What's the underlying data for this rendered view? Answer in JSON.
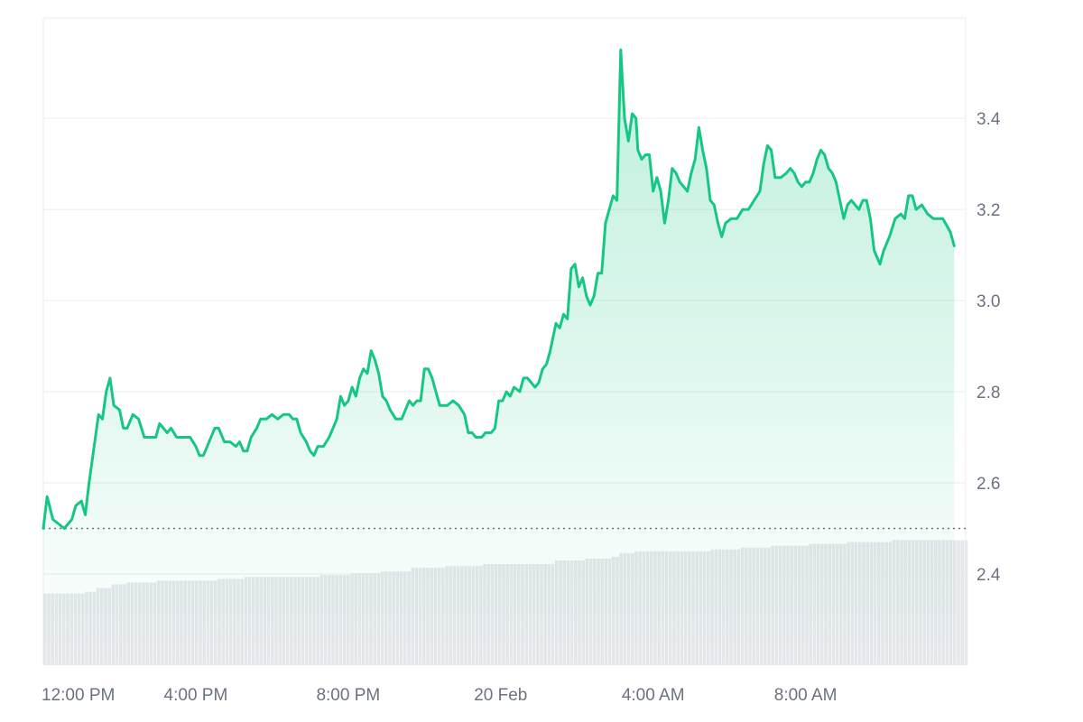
{
  "chart_data": {
    "type": "area",
    "title": "",
    "xlabel": "",
    "ylabel": "",
    "colors": {
      "line": "#16c784",
      "fill": "#16c784",
      "volume": "#e5e7eb",
      "grid": "#ececec",
      "baseline": "#6b7280"
    },
    "x_ticks": [
      {
        "label": "12:00 PM",
        "t": 0
      },
      {
        "label": "4:00 PM",
        "t": 4
      },
      {
        "label": "8:00 PM",
        "t": 8
      },
      {
        "label": "20 Feb",
        "t": 12
      },
      {
        "label": "4:00 AM",
        "t": 16
      },
      {
        "label": "8:00 AM",
        "t": 20
      }
    ],
    "y_ticks": [
      {
        "label": "3.4",
        "v": 3.4
      },
      {
        "label": "3.2",
        "v": 3.2
      },
      {
        "label": "3.0",
        "v": 3.0
      },
      {
        "label": "2.8",
        "v": 2.8
      },
      {
        "label": "2.6",
        "v": 2.6
      },
      {
        "label": "2.4",
        "v": 2.4
      }
    ],
    "baseline": 2.5,
    "ylim": [
      2.2,
      3.62
    ],
    "xlim": [
      0,
      24.2
    ],
    "grid": true,
    "price": [
      [
        0.0,
        2.5
      ],
      [
        0.1,
        2.57
      ],
      [
        0.25,
        2.52
      ],
      [
        0.4,
        2.51
      ],
      [
        0.55,
        2.5
      ],
      [
        0.75,
        2.52
      ],
      [
        0.85,
        2.55
      ],
      [
        1.0,
        2.56
      ],
      [
        1.1,
        2.53
      ],
      [
        1.2,
        2.6
      ],
      [
        1.45,
        2.75
      ],
      [
        1.55,
        2.74
      ],
      [
        1.65,
        2.8
      ],
      [
        1.75,
        2.83
      ],
      [
        1.85,
        2.77
      ],
      [
        2.0,
        2.76
      ],
      [
        2.1,
        2.72
      ],
      [
        2.2,
        2.72
      ],
      [
        2.35,
        2.75
      ],
      [
        2.5,
        2.74
      ],
      [
        2.65,
        2.7
      ],
      [
        2.8,
        2.7
      ],
      [
        2.95,
        2.7
      ],
      [
        3.05,
        2.73
      ],
      [
        3.15,
        2.72
      ],
      [
        3.25,
        2.71
      ],
      [
        3.35,
        2.72
      ],
      [
        3.5,
        2.7
      ],
      [
        3.65,
        2.7
      ],
      [
        3.85,
        2.7
      ],
      [
        4.0,
        2.68
      ],
      [
        4.1,
        2.66
      ],
      [
        4.2,
        2.66
      ],
      [
        4.35,
        2.69
      ],
      [
        4.5,
        2.72
      ],
      [
        4.6,
        2.72
      ],
      [
        4.75,
        2.69
      ],
      [
        4.9,
        2.69
      ],
      [
        5.05,
        2.68
      ],
      [
        5.15,
        2.69
      ],
      [
        5.25,
        2.67
      ],
      [
        5.35,
        2.67
      ],
      [
        5.45,
        2.7
      ],
      [
        5.6,
        2.72
      ],
      [
        5.7,
        2.74
      ],
      [
        5.85,
        2.74
      ],
      [
        6.0,
        2.75
      ],
      [
        6.15,
        2.74
      ],
      [
        6.3,
        2.75
      ],
      [
        6.45,
        2.75
      ],
      [
        6.55,
        2.74
      ],
      [
        6.65,
        2.74
      ],
      [
        6.75,
        2.71
      ],
      [
        6.9,
        2.69
      ],
      [
        7.0,
        2.67
      ],
      [
        7.1,
        2.66
      ],
      [
        7.2,
        2.68
      ],
      [
        7.35,
        2.68
      ],
      [
        7.5,
        2.7
      ],
      [
        7.6,
        2.72
      ],
      [
        7.7,
        2.74
      ],
      [
        7.8,
        2.79
      ],
      [
        7.9,
        2.77
      ],
      [
        8.0,
        2.78
      ],
      [
        8.1,
        2.81
      ],
      [
        8.2,
        2.79
      ],
      [
        8.3,
        2.83
      ],
      [
        8.4,
        2.85
      ],
      [
        8.5,
        2.84
      ],
      [
        8.6,
        2.89
      ],
      [
        8.7,
        2.87
      ],
      [
        8.8,
        2.84
      ],
      [
        8.9,
        2.79
      ],
      [
        9.0,
        2.78
      ],
      [
        9.1,
        2.76
      ],
      [
        9.25,
        2.74
      ],
      [
        9.4,
        2.74
      ],
      [
        9.5,
        2.76
      ],
      [
        9.6,
        2.78
      ],
      [
        9.7,
        2.77
      ],
      [
        9.8,
        2.78
      ],
      [
        9.9,
        2.78
      ],
      [
        10.0,
        2.85
      ],
      [
        10.1,
        2.85
      ],
      [
        10.2,
        2.83
      ],
      [
        10.3,
        2.8
      ],
      [
        10.4,
        2.77
      ],
      [
        10.6,
        2.77
      ],
      [
        10.75,
        2.78
      ],
      [
        10.9,
        2.77
      ],
      [
        11.05,
        2.75
      ],
      [
        11.15,
        2.71
      ],
      [
        11.25,
        2.71
      ],
      [
        11.35,
        2.7
      ],
      [
        11.5,
        2.7
      ],
      [
        11.6,
        2.71
      ],
      [
        11.75,
        2.71
      ],
      [
        11.85,
        2.72
      ],
      [
        11.95,
        2.78
      ],
      [
        12.05,
        2.78
      ],
      [
        12.15,
        2.8
      ],
      [
        12.25,
        2.79
      ],
      [
        12.35,
        2.81
      ],
      [
        12.5,
        2.8
      ],
      [
        12.6,
        2.83
      ],
      [
        12.7,
        2.83
      ],
      [
        12.8,
        2.82
      ],
      [
        12.9,
        2.81
      ],
      [
        13.0,
        2.82
      ],
      [
        13.1,
        2.85
      ],
      [
        13.2,
        2.86
      ],
      [
        13.3,
        2.89
      ],
      [
        13.45,
        2.95
      ],
      [
        13.55,
        2.94
      ],
      [
        13.65,
        2.97
      ],
      [
        13.75,
        2.96
      ],
      [
        13.85,
        3.07
      ],
      [
        13.95,
        3.08
      ],
      [
        14.05,
        3.03
      ],
      [
        14.15,
        3.05
      ],
      [
        14.25,
        3.01
      ],
      [
        14.35,
        2.99
      ],
      [
        14.45,
        3.01
      ],
      [
        14.55,
        3.06
      ],
      [
        14.65,
        3.06
      ],
      [
        14.75,
        3.17
      ],
      [
        14.85,
        3.2
      ],
      [
        14.95,
        3.23
      ],
      [
        15.05,
        3.22
      ],
      [
        15.15,
        3.55
      ],
      [
        15.25,
        3.4
      ],
      [
        15.35,
        3.35
      ],
      [
        15.45,
        3.41
      ],
      [
        15.55,
        3.4
      ],
      [
        15.6,
        3.33
      ],
      [
        15.7,
        3.31
      ],
      [
        15.8,
        3.32
      ],
      [
        15.9,
        3.32
      ],
      [
        16.0,
        3.24
      ],
      [
        16.1,
        3.27
      ],
      [
        16.2,
        3.24
      ],
      [
        16.3,
        3.17
      ],
      [
        16.4,
        3.22
      ],
      [
        16.5,
        3.29
      ],
      [
        16.6,
        3.28
      ],
      [
        16.7,
        3.26
      ],
      [
        16.8,
        3.25
      ],
      [
        16.9,
        3.24
      ],
      [
        17.0,
        3.28
      ],
      [
        17.1,
        3.31
      ],
      [
        17.2,
        3.38
      ],
      [
        17.3,
        3.33
      ],
      [
        17.4,
        3.29
      ],
      [
        17.5,
        3.22
      ],
      [
        17.6,
        3.21
      ],
      [
        17.7,
        3.17
      ],
      [
        17.8,
        3.14
      ],
      [
        17.9,
        3.17
      ],
      [
        18.05,
        3.18
      ],
      [
        18.2,
        3.18
      ],
      [
        18.35,
        3.2
      ],
      [
        18.5,
        3.2
      ],
      [
        18.65,
        3.22
      ],
      [
        18.8,
        3.24
      ],
      [
        18.9,
        3.3
      ],
      [
        19.0,
        3.34
      ],
      [
        19.1,
        3.33
      ],
      [
        19.2,
        3.27
      ],
      [
        19.35,
        3.27
      ],
      [
        19.5,
        3.28
      ],
      [
        19.6,
        3.29
      ],
      [
        19.7,
        3.28
      ],
      [
        19.8,
        3.26
      ],
      [
        19.9,
        3.25
      ],
      [
        20.0,
        3.26
      ],
      [
        20.1,
        3.26
      ],
      [
        20.2,
        3.28
      ],
      [
        20.3,
        3.31
      ],
      [
        20.4,
        3.33
      ],
      [
        20.5,
        3.32
      ],
      [
        20.6,
        3.29
      ],
      [
        20.7,
        3.28
      ],
      [
        20.8,
        3.26
      ],
      [
        20.9,
        3.22
      ],
      [
        21.0,
        3.18
      ],
      [
        21.1,
        3.21
      ],
      [
        21.2,
        3.22
      ],
      [
        21.3,
        3.21
      ],
      [
        21.4,
        3.2
      ],
      [
        21.5,
        3.22
      ],
      [
        21.6,
        3.22
      ],
      [
        21.7,
        3.18
      ],
      [
        21.8,
        3.11
      ],
      [
        21.95,
        3.08
      ],
      [
        22.05,
        3.11
      ],
      [
        22.2,
        3.14
      ],
      [
        22.35,
        3.18
      ],
      [
        22.5,
        3.19
      ],
      [
        22.6,
        3.18
      ],
      [
        22.7,
        3.23
      ],
      [
        22.8,
        3.23
      ],
      [
        22.9,
        3.2
      ],
      [
        23.05,
        3.21
      ],
      [
        23.2,
        3.19
      ],
      [
        23.35,
        3.18
      ],
      [
        23.5,
        3.18
      ],
      [
        23.6,
        3.18
      ],
      [
        23.8,
        3.15
      ],
      [
        23.9,
        3.12
      ]
    ],
    "volume_level": [
      [
        0.0,
        0.39
      ],
      [
        1.0,
        0.4
      ],
      [
        1.3,
        0.42
      ],
      [
        1.7,
        0.44
      ],
      [
        2.1,
        0.45
      ],
      [
        2.9,
        0.46
      ],
      [
        4.5,
        0.47
      ],
      [
        5.2,
        0.48
      ],
      [
        6.2,
        0.48
      ],
      [
        7.2,
        0.49
      ],
      [
        8.0,
        0.5
      ],
      [
        8.8,
        0.51
      ],
      [
        9.6,
        0.53
      ],
      [
        10.5,
        0.54
      ],
      [
        11.5,
        0.55
      ],
      [
        12.5,
        0.55
      ],
      [
        13.4,
        0.57
      ],
      [
        14.2,
        0.58
      ],
      [
        14.9,
        0.59
      ],
      [
        15.1,
        0.61
      ],
      [
        15.5,
        0.62
      ],
      [
        16.0,
        0.62
      ],
      [
        17.0,
        0.62
      ],
      [
        17.5,
        0.63
      ],
      [
        18.2,
        0.64
      ],
      [
        19.0,
        0.65
      ],
      [
        20.0,
        0.66
      ],
      [
        21.0,
        0.67
      ],
      [
        22.2,
        0.68
      ],
      [
        23.5,
        0.68
      ],
      [
        24.2,
        0.68
      ]
    ]
  }
}
